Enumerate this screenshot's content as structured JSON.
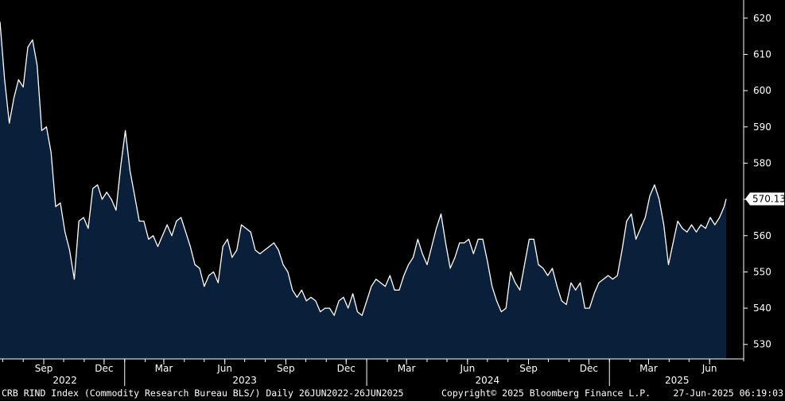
{
  "footer": {
    "series": "CRB RIND Index (Commodity Research Bureau BLS/)  Daily 26JUN2022-26JUN2025",
    "copyright": "Copyright© 2025 Bloomberg Finance L.P.",
    "timestamp": "27-Jun-2025 06:19:03"
  },
  "colors": {
    "background": "#000000",
    "area_fill": "#0a1f3a",
    "line": "#ffffff"
  },
  "chart_data": {
    "type": "area",
    "title": "",
    "xlabel": "",
    "ylabel": "",
    "ylim": [
      526,
      625
    ],
    "xlim": [
      "2022-06-27",
      "2025-06-26"
    ],
    "yticks": [
      530,
      540,
      550,
      560,
      570,
      580,
      590,
      600,
      610,
      620
    ],
    "xticks": [
      {
        "date": "2022-09-01",
        "label": "Sep"
      },
      {
        "date": "2022-12-01",
        "label": "Dec"
      },
      {
        "date": "2023-03-01",
        "label": "Mar"
      },
      {
        "date": "2023-06-01",
        "label": "Jun"
      },
      {
        "date": "2023-09-01",
        "label": "Sep"
      },
      {
        "date": "2023-12-01",
        "label": "Dec"
      },
      {
        "date": "2024-03-01",
        "label": "Mar"
      },
      {
        "date": "2024-06-01",
        "label": "Jun"
      },
      {
        "date": "2024-09-01",
        "label": "Sep"
      },
      {
        "date": "2024-12-01",
        "label": "Dec"
      },
      {
        "date": "2025-03-01",
        "label": "Mar"
      },
      {
        "date": "2025-06-01",
        "label": "Jun"
      }
    ],
    "year_labels": [
      "2022",
      "2023",
      "2024",
      "2025"
    ],
    "year_boundaries": [
      "2023-01-01",
      "2024-01-01",
      "2025-01-01"
    ],
    "last_value": "570.13",
    "series": [
      {
        "x": [
          "2022-06-27",
          "2022-07-04",
          "2022-07-11",
          "2022-07-18",
          "2022-07-25",
          "2022-08-01",
          "2022-08-08",
          "2022-08-15",
          "2022-08-22",
          "2022-08-29",
          "2022-09-05",
          "2022-09-12",
          "2022-09-19",
          "2022-09-26",
          "2022-10-03",
          "2022-10-10",
          "2022-10-17",
          "2022-10-24",
          "2022-10-31",
          "2022-11-07",
          "2022-11-14",
          "2022-11-21",
          "2022-11-28",
          "2022-12-05",
          "2022-12-12",
          "2022-12-19",
          "2022-12-26",
          "2023-01-02",
          "2023-01-09",
          "2023-01-16",
          "2023-01-23",
          "2023-01-30",
          "2023-02-06",
          "2023-02-13",
          "2023-02-20",
          "2023-02-27",
          "2023-03-06",
          "2023-03-13",
          "2023-03-20",
          "2023-03-27",
          "2023-04-03",
          "2023-04-10",
          "2023-04-17",
          "2023-04-24",
          "2023-05-01",
          "2023-05-08",
          "2023-05-15",
          "2023-05-22",
          "2023-05-29",
          "2023-06-05",
          "2023-06-12",
          "2023-06-19",
          "2023-06-26",
          "2023-07-03",
          "2023-07-10",
          "2023-07-17",
          "2023-07-24",
          "2023-07-31",
          "2023-08-07",
          "2023-08-14",
          "2023-08-21",
          "2023-08-28",
          "2023-09-04",
          "2023-09-11",
          "2023-09-18",
          "2023-09-25",
          "2023-10-02",
          "2023-10-09",
          "2023-10-16",
          "2023-10-23",
          "2023-10-30",
          "2023-11-06",
          "2023-11-13",
          "2023-11-20",
          "2023-11-27",
          "2023-12-04",
          "2023-12-11",
          "2023-12-18",
          "2023-12-25",
          "2024-01-01",
          "2024-01-08",
          "2024-01-15",
          "2024-01-22",
          "2024-01-29",
          "2024-02-05",
          "2024-02-12",
          "2024-02-19",
          "2024-02-26",
          "2024-03-04",
          "2024-03-11",
          "2024-03-18",
          "2024-03-25",
          "2024-04-01",
          "2024-04-08",
          "2024-04-15",
          "2024-04-22",
          "2024-04-29",
          "2024-05-06",
          "2024-05-13",
          "2024-05-20",
          "2024-05-27",
          "2024-06-03",
          "2024-06-10",
          "2024-06-17",
          "2024-06-24",
          "2024-07-01",
          "2024-07-08",
          "2024-07-15",
          "2024-07-22",
          "2024-07-29",
          "2024-08-05",
          "2024-08-12",
          "2024-08-19",
          "2024-08-26",
          "2024-09-02",
          "2024-09-09",
          "2024-09-16",
          "2024-09-23",
          "2024-09-30",
          "2024-10-07",
          "2024-10-14",
          "2024-10-21",
          "2024-10-28",
          "2024-11-04",
          "2024-11-11",
          "2024-11-18",
          "2024-11-25",
          "2024-12-02",
          "2024-12-09",
          "2024-12-16",
          "2024-12-23",
          "2024-12-30",
          "2025-01-06",
          "2025-01-13",
          "2025-01-20",
          "2025-01-27",
          "2025-02-03",
          "2025-02-10",
          "2025-02-17",
          "2025-02-24",
          "2025-03-03",
          "2025-03-10",
          "2025-03-17",
          "2025-03-24",
          "2025-03-31",
          "2025-04-07",
          "2025-04-14",
          "2025-04-21",
          "2025-04-28",
          "2025-05-05",
          "2025-05-12",
          "2025-05-19",
          "2025-05-26",
          "2025-06-02",
          "2025-06-09",
          "2025-06-16",
          "2025-06-23",
          "2025-06-26"
        ],
        "y": [
          619,
          603,
          591,
          598,
          603,
          601,
          612,
          614,
          607,
          589,
          590,
          583,
          568,
          569,
          561,
          556,
          548,
          564,
          565,
          562,
          573,
          574,
          570,
          572,
          570,
          567,
          579,
          589,
          578,
          571,
          564,
          564,
          559,
          560,
          557,
          560,
          563,
          560,
          564,
          565,
          561,
          557,
          552,
          551,
          546,
          549,
          550,
          547,
          557,
          559,
          554,
          556,
          563,
          562,
          561,
          556,
          555,
          556,
          557,
          558,
          556,
          552,
          550,
          545,
          543,
          545,
          542,
          543,
          542,
          539,
          540,
          540,
          538,
          542,
          543,
          540,
          544,
          539,
          538,
          542,
          546,
          548,
          547,
          546,
          549,
          545,
          545,
          549,
          552,
          554,
          559,
          555,
          552,
          557,
          562,
          566,
          558,
          551,
          554,
          558,
          558,
          559,
          555,
          559,
          559,
          553,
          546,
          542,
          539,
          540,
          550,
          547,
          545,
          552,
          559,
          559,
          552,
          551,
          549,
          551,
          546,
          542,
          541,
          547,
          545,
          547,
          540,
          540,
          544,
          547,
          548,
          549,
          548,
          549,
          556,
          564,
          566,
          559,
          562,
          565,
          571,
          574,
          570,
          563,
          552,
          558,
          564,
          562,
          561,
          563,
          561,
          563,
          562,
          565,
          563,
          565,
          568,
          570.13
        ]
      }
    ]
  }
}
